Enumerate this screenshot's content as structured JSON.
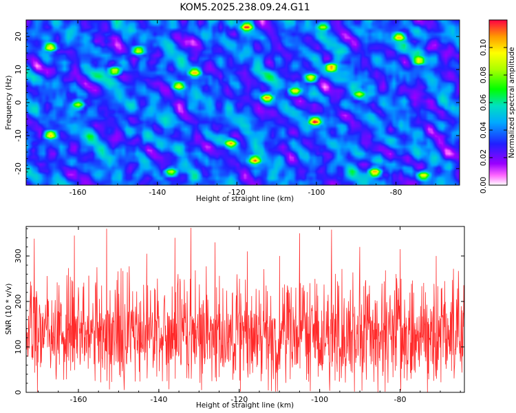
{
  "chart_data": [
    {
      "type": "heatmap",
      "title": "KOM5.2025.238.09.24.G11",
      "xlabel": "Height of straight line (km)",
      "ylabel": "Frequency (Hz)",
      "xlim": [
        -173,
        -64
      ],
      "ylim": [
        -25,
        25
      ],
      "xticks": [
        "-160",
        "-140",
        "-120",
        "-100",
        "-80"
      ],
      "yticks": [
        "-20",
        "-10",
        "0",
        "10",
        "20"
      ],
      "colorbar": {
        "label": "Normalized spectral amplitude",
        "range": [
          0,
          0.12
        ],
        "ticks": [
          "0.00",
          "0.02",
          "0.04",
          "0.06",
          "0.08",
          "0.10"
        ]
      },
      "hot_spots": [
        {
          "x": -101,
          "y": -5,
          "v": 0.12
        },
        {
          "x": -116,
          "y": -16.5,
          "v": 0.11
        },
        {
          "x": -86,
          "y": -20,
          "v": 0.11
        },
        {
          "x": -122,
          "y": -11.5,
          "v": 0.1
        },
        {
          "x": -167,
          "y": -9,
          "v": 0.1
        },
        {
          "x": -97,
          "y": 11,
          "v": 0.11
        },
        {
          "x": -102,
          "y": 8,
          "v": 0.1
        },
        {
          "x": -113,
          "y": 2,
          "v": 0.1
        },
        {
          "x": -131,
          "y": 9.5,
          "v": 0.1
        },
        {
          "x": -151,
          "y": 10,
          "v": 0.1
        },
        {
          "x": -167,
          "y": 17,
          "v": 0.1
        },
        {
          "x": -118,
          "y": 23,
          "v": 0.11
        },
        {
          "x": -80,
          "y": 20,
          "v": 0.1
        },
        {
          "x": -106,
          "y": 4,
          "v": 0.09
        },
        {
          "x": -135,
          "y": 5.5,
          "v": 0.09
        },
        {
          "x": -74,
          "y": -21,
          "v": 0.09
        },
        {
          "x": -160,
          "y": 0,
          "v": 0.08
        },
        {
          "x": -145,
          "y": 16,
          "v": 0.09
        },
        {
          "x": -75,
          "y": 13,
          "v": 0.09
        },
        {
          "x": -90,
          "y": 3,
          "v": 0.08
        },
        {
          "x": -137,
          "y": -20,
          "v": 0.09
        },
        {
          "x": -99,
          "y": 23,
          "v": 0.08
        }
      ]
    },
    {
      "type": "line",
      "xlabel": "Height of straight line (km)",
      "ylabel": "SNR (10 * v/v)",
      "xlim": [
        -173,
        -64
      ],
      "ylim": [
        0,
        365
      ],
      "xticks": [
        "-160",
        "-140",
        "-120",
        "-100",
        "-80"
      ],
      "yticks": [
        "0",
        "100",
        "200",
        "300"
      ],
      "series_color": "#ff2a2a",
      "baseline": 120,
      "noise_band": [
        20,
        250
      ],
      "peak_values": [
        {
          "x": -153,
          "y": 360
        },
        {
          "x": -132,
          "y": 362
        },
        {
          "x": -97,
          "y": 358
        },
        {
          "x": -105,
          "y": 350
        },
        {
          "x": -161,
          "y": 345
        },
        {
          "x": -136,
          "y": 340
        },
        {
          "x": -171,
          "y": 338
        },
        {
          "x": -126,
          "y": 330
        },
        {
          "x": -90,
          "y": 320
        },
        {
          "x": -80,
          "y": 315
        },
        {
          "x": -118,
          "y": 310
        },
        {
          "x": -143,
          "y": 305
        },
        {
          "x": -71,
          "y": 300
        },
        {
          "x": -110,
          "y": 300
        }
      ]
    }
  ]
}
